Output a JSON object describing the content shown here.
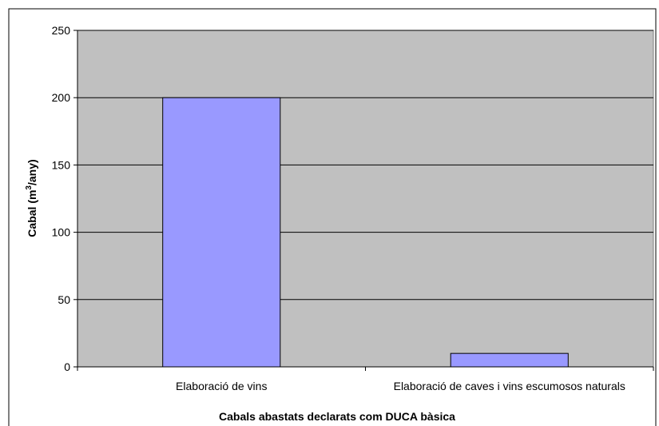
{
  "chart_data": {
    "type": "bar",
    "categories": [
      "Elaboració de vins",
      "Elaboració de caves i vins escumosos naturals"
    ],
    "series": [
      {
        "values": [
          200,
          10
        ]
      }
    ],
    "ylim": [
      0,
      250
    ],
    "yticks": [
      0,
      50,
      100,
      150,
      200,
      250
    ],
    "xlabel": "Cabals abastats declarats com DUCA bàsica",
    "ylabel": {
      "prefix": "Cabal (m",
      "sup": "3",
      "suffix": "/any)"
    },
    "grid": true,
    "legend": "none",
    "colors": {
      "bar": "#9999ff",
      "plot_background": "#c0c0c0",
      "gridline": "#000000"
    }
  }
}
